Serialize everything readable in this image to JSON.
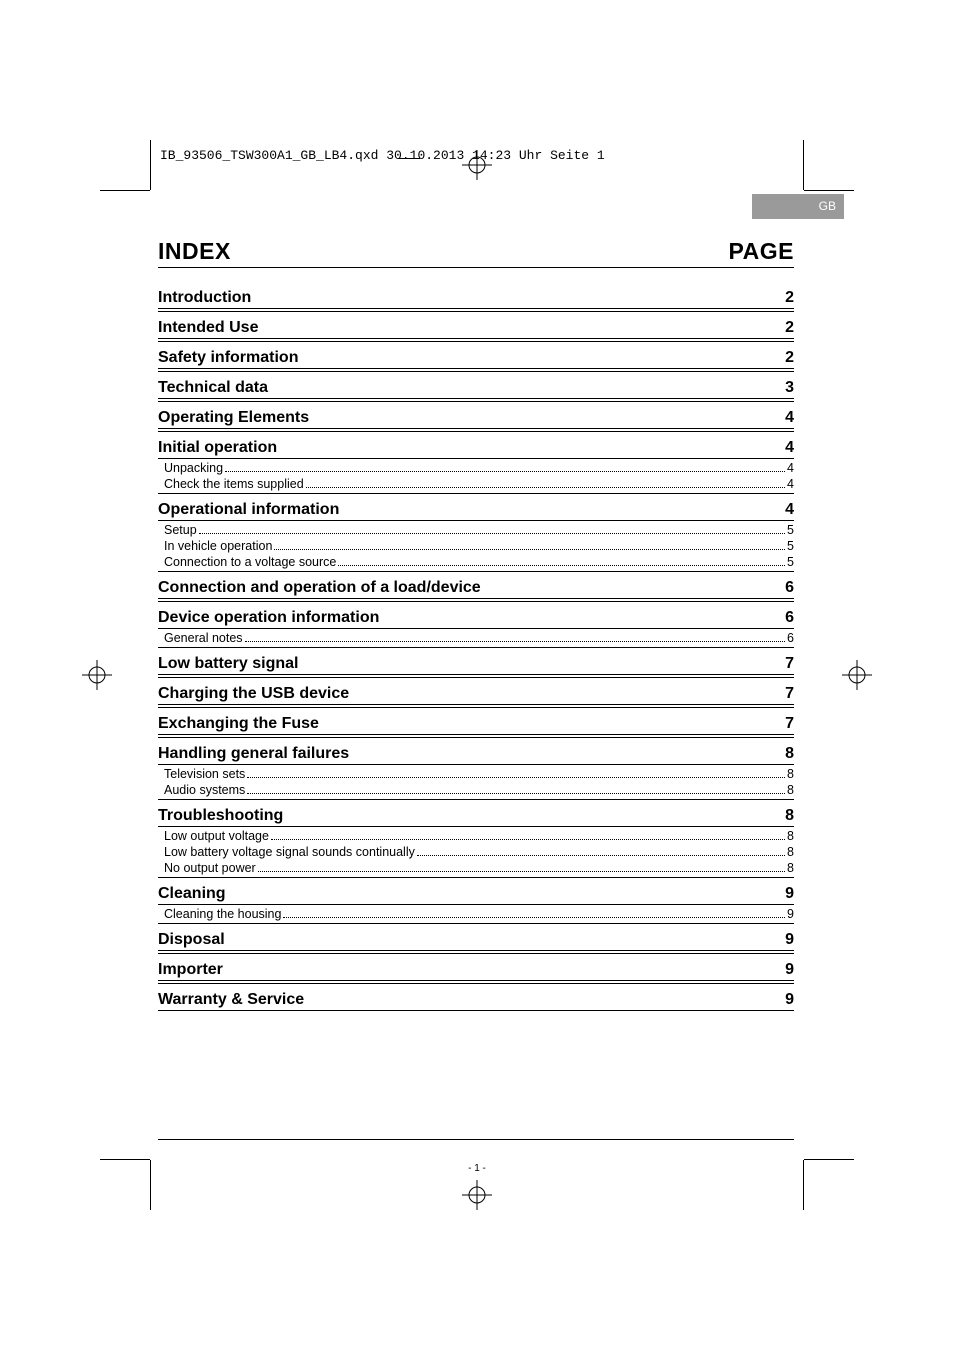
{
  "doc_info": "IB_93506_TSW300A1_GB_LB4.qxd  30.10.2013  14:23 Uhr  Seite 1",
  "lang_tab": "GB",
  "header": {
    "index_label": "INDEX",
    "page_label": "PAGE"
  },
  "page_number": "- 1 -",
  "colors": {
    "tab_bg": "#9a9a9a",
    "tab_fg": "#ffffff",
    "text": "#000000",
    "rule": "#000000"
  },
  "toc": [
    {
      "title": "Introduction",
      "page": "2",
      "subs": []
    },
    {
      "title": "Intended Use",
      "page": "2",
      "subs": []
    },
    {
      "title": "Safety information",
      "page": "2",
      "subs": []
    },
    {
      "title": "Technical data",
      "page": "3",
      "subs": []
    },
    {
      "title": "Operating Elements",
      "page": "4",
      "subs": []
    },
    {
      "title": "Initial operation",
      "page": "4",
      "subs": [
        {
          "title": "Unpacking",
          "page": "4"
        },
        {
          "title": "Check the items supplied",
          "page": "4"
        }
      ]
    },
    {
      "title": "Operational information",
      "page": "4",
      "subs": [
        {
          "title": "Setup",
          "page": "5"
        },
        {
          "title": "In vehicle operation",
          "page": "5"
        },
        {
          "title": "Connection to a voltage source",
          "page": "5"
        }
      ]
    },
    {
      "title": "Connection and operation of a load/device",
      "page": "6",
      "subs": []
    },
    {
      "title": "Device operation information",
      "page": "6",
      "subs": [
        {
          "title": "General notes",
          "page": "6"
        }
      ]
    },
    {
      "title": "Low battery signal",
      "page": "7",
      "subs": []
    },
    {
      "title": "Charging the USB device",
      "page": "7",
      "subs": []
    },
    {
      "title": "Exchanging the Fuse",
      "page": "7",
      "subs": []
    },
    {
      "title": "Handling general failures",
      "page": "8",
      "subs": [
        {
          "title": "Television sets",
          "page": "8"
        },
        {
          "title": "Audio systems",
          "page": "8"
        }
      ]
    },
    {
      "title": "Troubleshooting",
      "page": "8",
      "subs": [
        {
          "title": "Low output voltage",
          "page": "8"
        },
        {
          "title": "Low battery voltage signal sounds continually",
          "page": "8"
        },
        {
          "title": "No output power",
          "page": "8"
        }
      ]
    },
    {
      "title": "Cleaning",
      "page": "9",
      "subs": [
        {
          "title": "Cleaning the housing",
          "page": "9"
        }
      ]
    },
    {
      "title": "Disposal",
      "page": "9",
      "subs": []
    },
    {
      "title": "Importer",
      "page": "9",
      "subs": []
    },
    {
      "title": "Warranty & Service",
      "page": "9",
      "subs": []
    }
  ]
}
